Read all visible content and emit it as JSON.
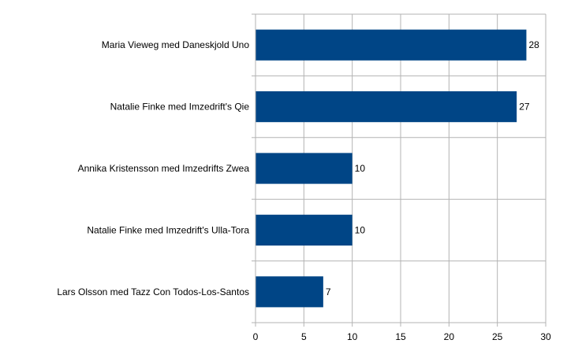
{
  "chart_data": {
    "type": "bar",
    "orientation": "horizontal",
    "categories": [
      "Maria Vieweg med Daneskjold Uno",
      "Natalie Finke med Imzedrift's Qie",
      "Annika Kristensson med Imzedrifts Zwea",
      "Natalie Finke med Imzedrift's Ulla-Tora",
      "Lars Olsson med Tazz Con Todos-Los-Santos"
    ],
    "values": [
      28,
      27,
      10,
      10,
      7
    ],
    "data_labels": [
      "28",
      "27",
      "10",
      "10",
      "7"
    ],
    "x_ticks": [
      "0",
      "5",
      "10",
      "15",
      "20",
      "25",
      "30"
    ],
    "xlim": [
      0,
      30
    ],
    "grid": true,
    "legend": "none",
    "title": "",
    "xlabel": "",
    "ylabel": "",
    "bar_color": "#004586",
    "grid_color": "#b3b3b3"
  }
}
